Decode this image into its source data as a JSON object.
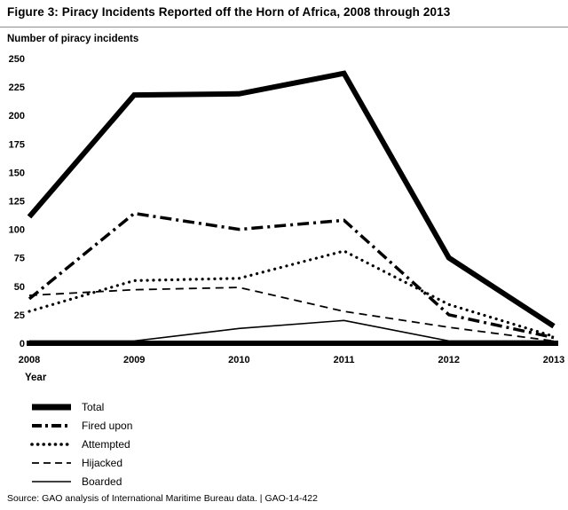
{
  "header": {
    "title": "Figure 3: Piracy Incidents Reported off the Horn of Africa, 2008 through 2013"
  },
  "axis": {
    "y_label": "Number of piracy incidents",
    "x_label": "Year"
  },
  "chart_data": {
    "type": "line",
    "title": "Figure 3: Piracy Incidents Reported off the Horn of Africa, 2008 through 2013",
    "xlabel": "Year",
    "ylabel": "Number of piracy incidents",
    "x": [
      2008,
      2009,
      2010,
      2011,
      2012,
      2013
    ],
    "ylim": [
      0,
      250
    ],
    "ytick_step": 25,
    "grid": false,
    "legend_position": "bottom-left",
    "line_color": "#000000",
    "series": [
      {
        "name": "Total",
        "style": "thick-solid",
        "values": [
          111,
          218,
          219,
          237,
          75,
          15
        ]
      },
      {
        "name": "Fired upon",
        "style": "dash-dot",
        "values": [
          39,
          114,
          100,
          108,
          25,
          5
        ]
      },
      {
        "name": "Attempted",
        "style": "dotted",
        "values": [
          28,
          55,
          57,
          81,
          34,
          6
        ]
      },
      {
        "name": "Hijacked",
        "style": "dashed",
        "values": [
          42,
          47,
          49,
          28,
          14,
          2
        ]
      },
      {
        "name": "Boarded",
        "style": "thin-solid",
        "values": [
          2,
          2,
          13,
          20,
          2,
          2
        ]
      }
    ]
  },
  "footer": {
    "source": "Source: GAO analysis of International Maritime Bureau data.  |  GAO-14-422"
  }
}
